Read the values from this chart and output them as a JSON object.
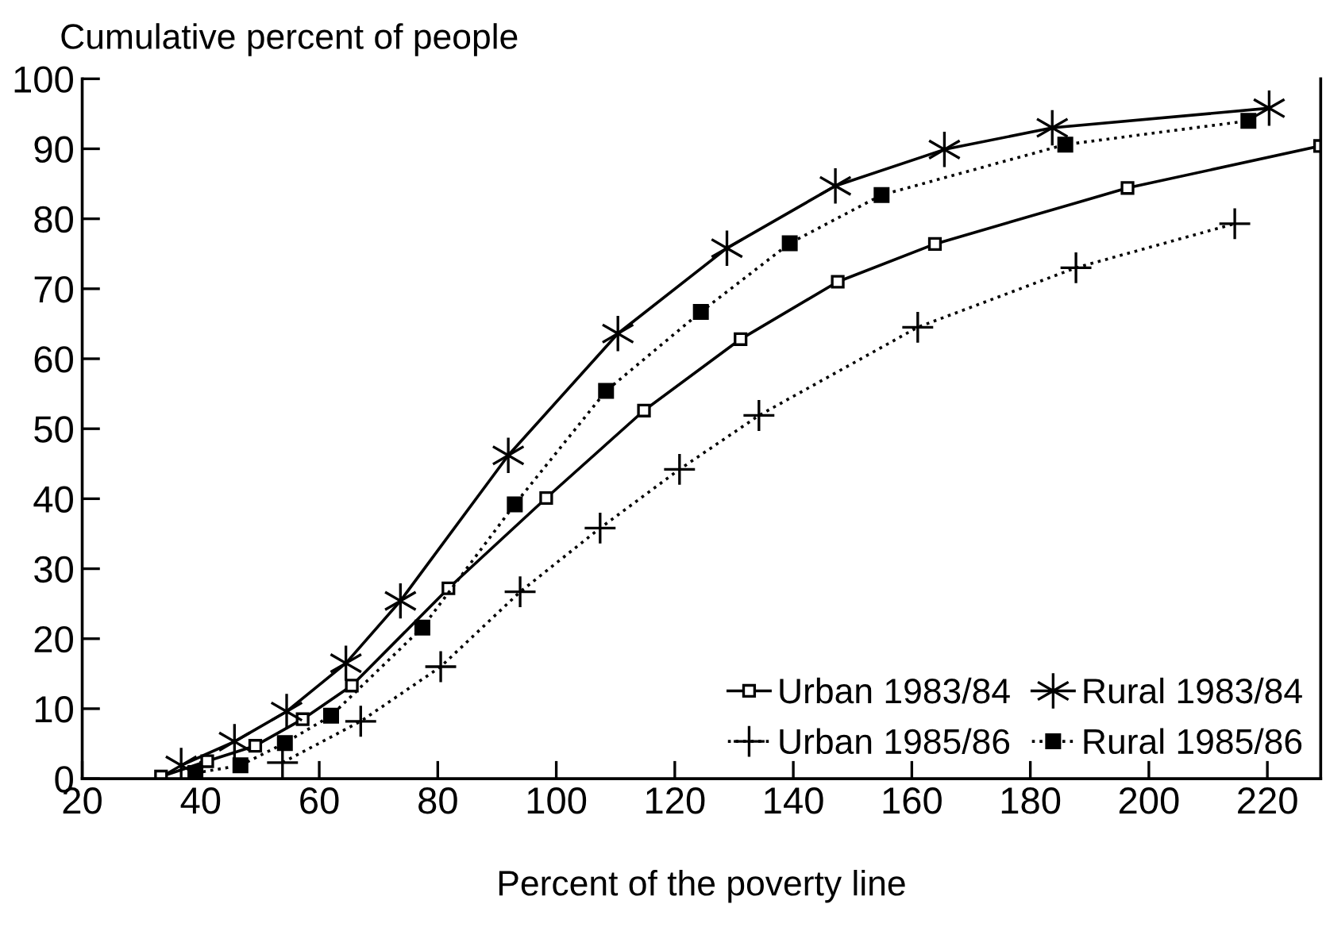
{
  "chart_data": {
    "type": "line",
    "ylabel": "Cumulative percent of people",
    "xlabel": "Percent of the poverty line",
    "xlim": [
      20,
      229
    ],
    "ylim": [
      0,
      100
    ],
    "xticks": [
      20,
      40,
      60,
      80,
      100,
      120,
      140,
      160,
      180,
      200,
      220
    ],
    "yticks": [
      0,
      10,
      20,
      30,
      40,
      50,
      60,
      70,
      80,
      90,
      100
    ],
    "grid": false,
    "legend": "bottom right",
    "series": [
      {
        "name": "Urban 1983/84",
        "color": "#000000",
        "marker": "square",
        "line_style": "solid",
        "x": [
          33.3,
          41.1,
          49.2,
          57.2,
          65.5,
          81.8,
          98.3,
          114.8,
          131.1,
          147.5,
          163.9,
          196.4,
          228.9
        ],
        "values": [
          0.3,
          2.5,
          4.7,
          8.5,
          13.3,
          27.2,
          40.1,
          52.6,
          62.8,
          71.0,
          76.4,
          84.4,
          90.4
        ]
      },
      {
        "name": "Urban 1985/86",
        "color": "#000000",
        "marker": "cross",
        "line_style": "dotted",
        "x": [
          53.8,
          67.0,
          80.5,
          93.9,
          107.4,
          120.8,
          134.2,
          161.0,
          187.7,
          214.5
        ],
        "values": [
          2.3,
          8.2,
          16.0,
          26.7,
          35.8,
          44.2,
          51.9,
          64.5,
          73.0,
          79.3
        ]
      },
      {
        "name": "Rural 1983/84",
        "color": "#000000",
        "marker": "cross",
        "line_style": "solid",
        "x": [
          36.7,
          45.7,
          54.5,
          64.5,
          73.7,
          91.9,
          110.4,
          128.8,
          147.1,
          165.5,
          183.7,
          220.3
        ],
        "values": [
          1.9,
          5.3,
          9.6,
          16.5,
          25.4,
          46.2,
          63.6,
          75.8,
          84.7,
          89.9,
          93.0,
          95.8
        ]
      },
      {
        "name": "Rural 1985/86",
        "color": "#000000",
        "marker": "square",
        "line_style": "dotted",
        "x": [
          39.1,
          46.7,
          54.2,
          62.0,
          77.4,
          93.0,
          108.4,
          124.4,
          139.4,
          154.9,
          185.9,
          216.8
        ],
        "values": [
          0.8,
          1.9,
          5.1,
          9.0,
          21.6,
          39.2,
          55.4,
          66.7,
          76.5,
          83.4,
          90.6,
          94.0
        ]
      }
    ]
  }
}
